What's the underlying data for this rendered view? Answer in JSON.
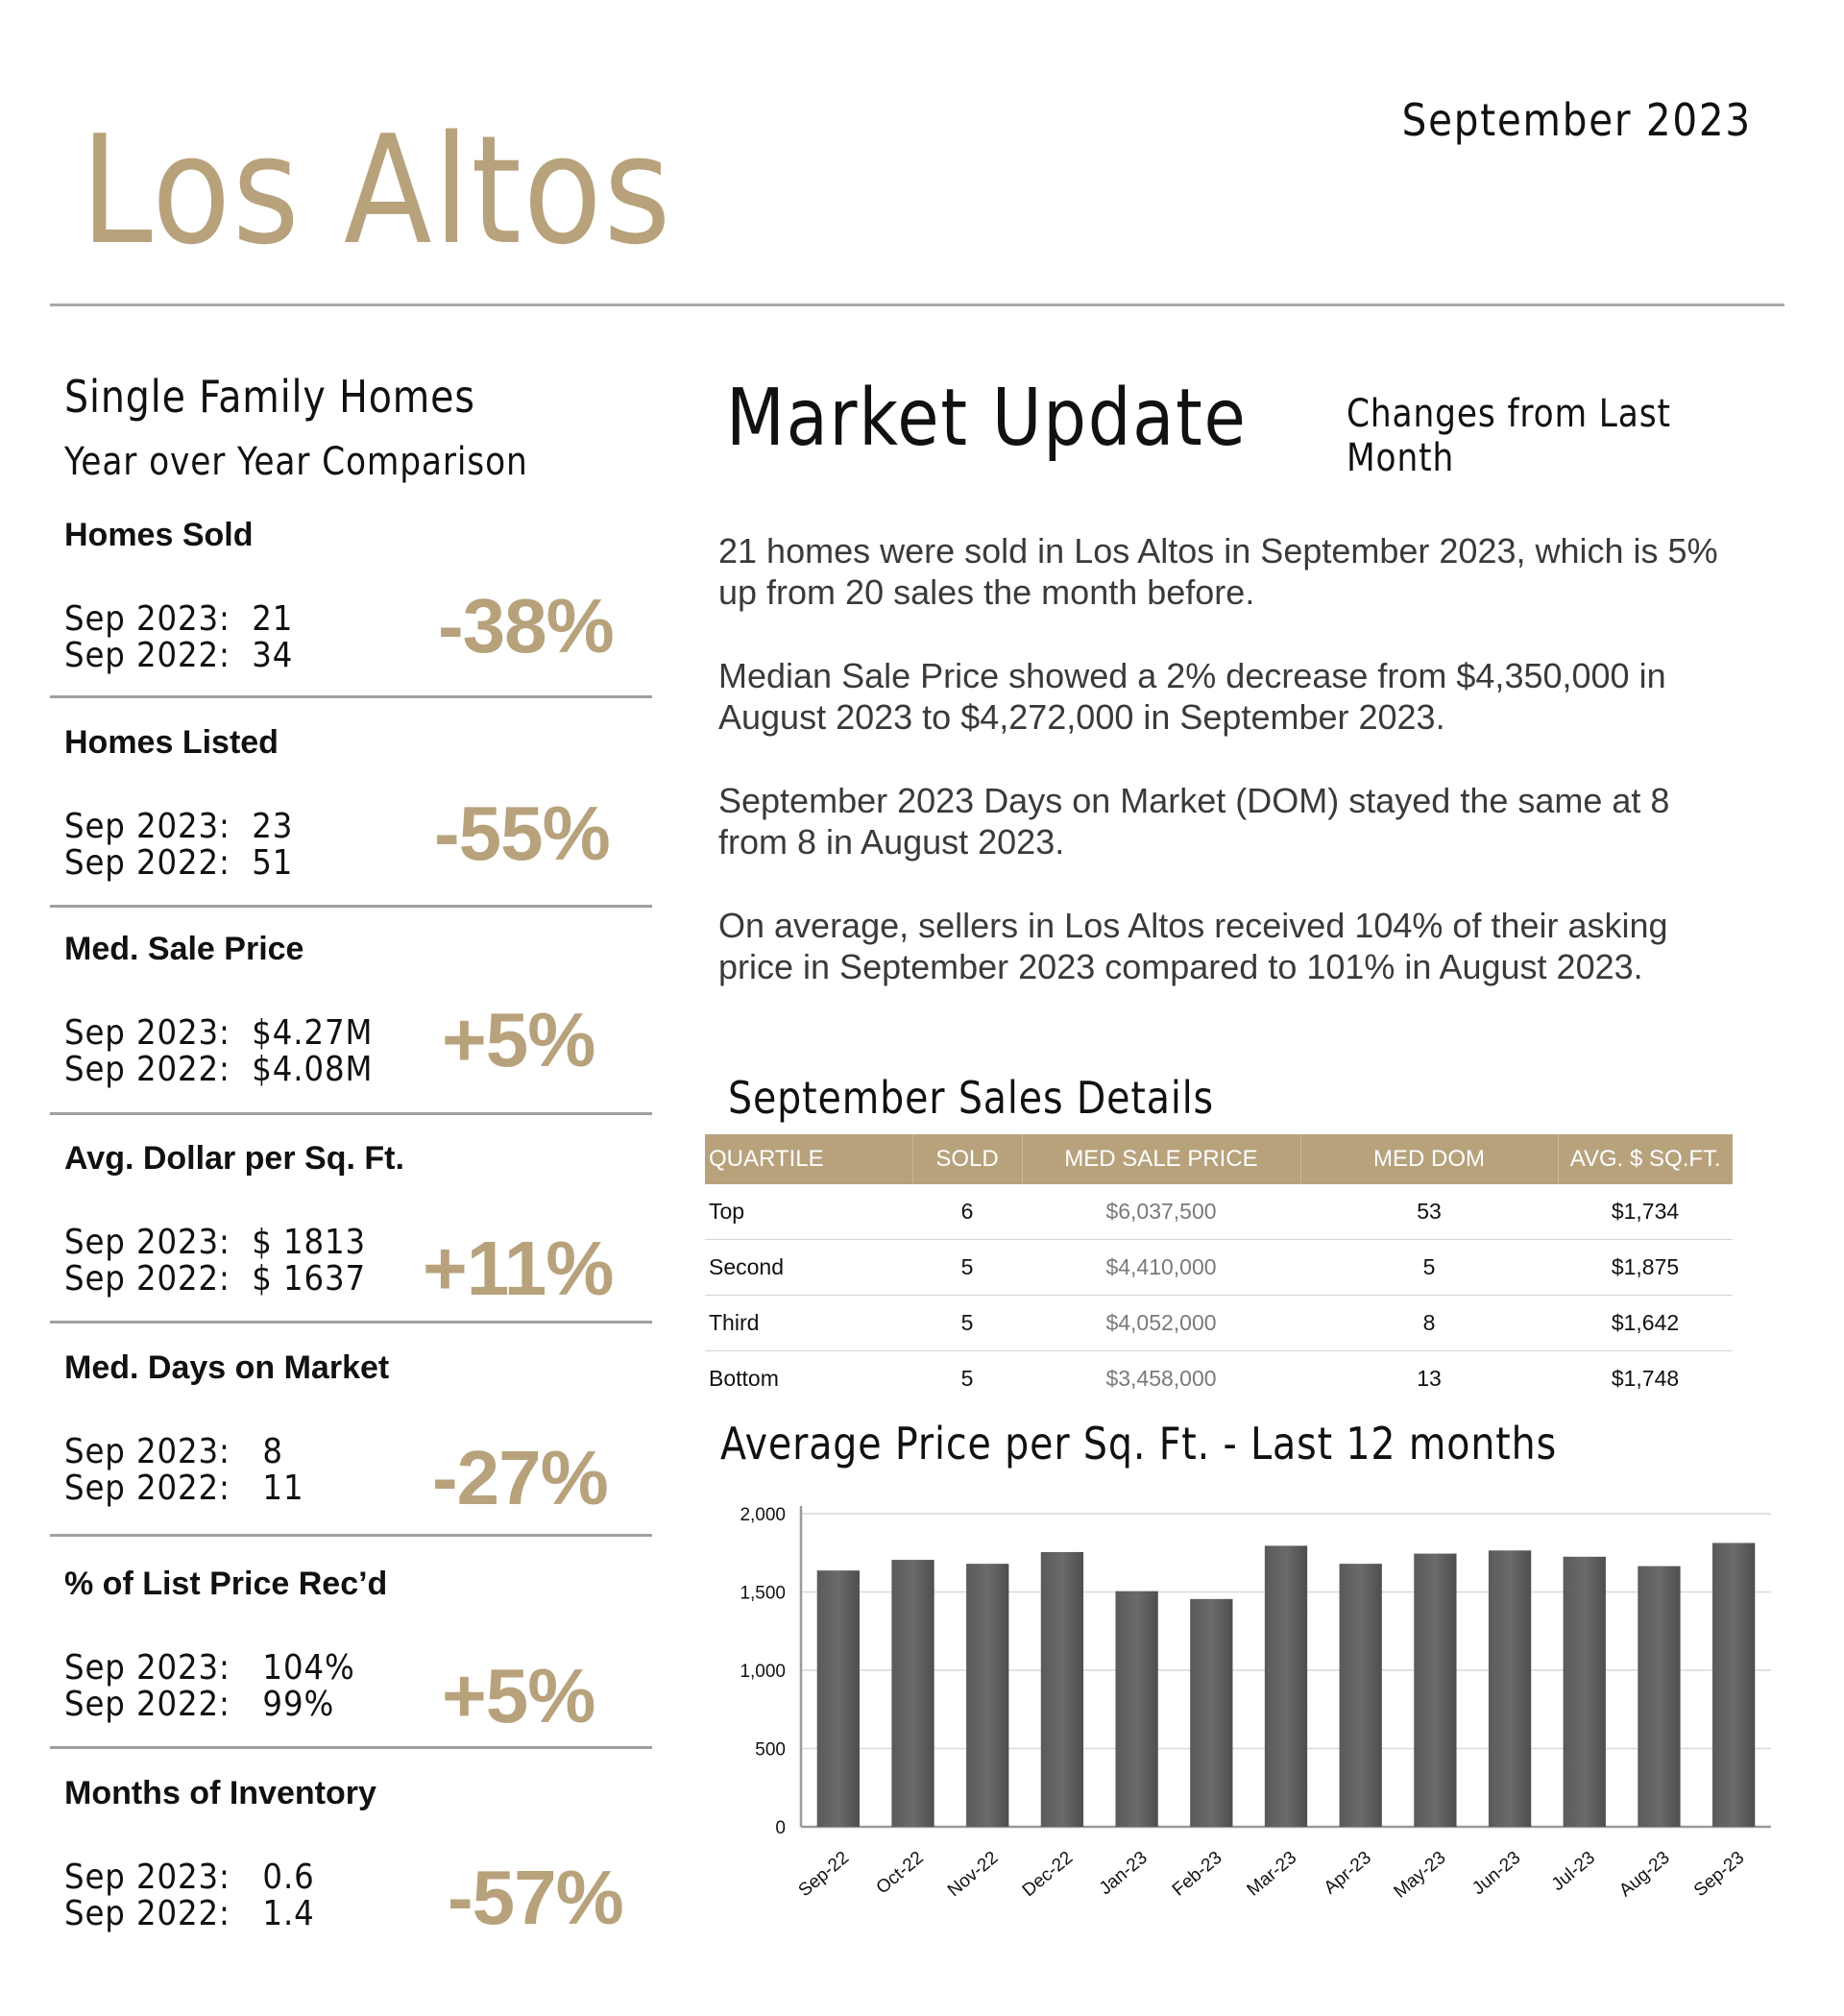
{
  "header": {
    "city": "Los Altos",
    "date": "September 2023"
  },
  "left": {
    "title": "Single Family Homes",
    "subtitle": "Year over Year Comparison",
    "metrics": [
      {
        "label": "Homes Sold",
        "line1": "Sep 2023:  21",
        "line2": "Sep 2022:  34",
        "change": "-38%"
      },
      {
        "label": "Homes Listed",
        "line1": "Sep 2023:  23",
        "line2": "Sep 2022:  51",
        "change": "-55%"
      },
      {
        "label": "Med. Sale Price",
        "line1": "Sep 2023:  $4.27M",
        "line2": "Sep 2022:  $4.08M",
        "change": "+5%"
      },
      {
        "label": "Avg. Dollar per Sq. Ft.",
        "line1": "Sep 2023:  $ 1813",
        "line2": "Sep 2022:  $ 1637",
        "change": "+11%"
      },
      {
        "label": "Med. Days on Market",
        "line1": "Sep 2023:   8",
        "line2": "Sep 2022:   11",
        "change": "-27%"
      },
      {
        "label": "% of List Price Rec’d",
        "line1": "Sep 2023:   104%",
        "line2": "Sep 2022:   99%",
        "change": "+5%"
      },
      {
        "label": "Months of Inventory",
        "line1": "Sep 2023:   0.6",
        "line2": "Sep 2022:   1.4",
        "change": "-57%"
      }
    ]
  },
  "market": {
    "title": "Market Update",
    "subtitle": "Changes from Last Month",
    "paragraphs": [
      "21 homes were sold in Los Altos in September 2023, which is 5% up from 20 sales the month before.",
      "Median Sale Price showed a 2% decrease from $4,350,000 in August 2023 to $4,272,000 in September 2023.",
      "September 2023 Days on Market (DOM) stayed the same at 8 from 8 in August 2023.",
      "On average, sellers in Los Altos received 104% of their asking price in September 2023 compared to 101% in August 2023."
    ]
  },
  "sales": {
    "title": "September Sales Details",
    "headers": [
      "QUARTILE",
      "SOLD",
      "MED SALE PRICE",
      "MED DOM",
      "AVG. $ SQ.FT."
    ],
    "rows": [
      [
        "Top",
        "6",
        "$6,037,500",
        "53",
        "$1,734"
      ],
      [
        "Second",
        "5",
        "$4,410,000",
        "5",
        "$1,875"
      ],
      [
        "Third",
        "5",
        "$4,052,000",
        "8",
        "$1,642"
      ],
      [
        "Bottom",
        "5",
        "$3,458,000",
        "13",
        "$1,748"
      ]
    ]
  },
  "chart_data": {
    "type": "bar",
    "title": "Average Price per Sq. Ft. - Last 12 months",
    "categories": [
      "Sep-22",
      "Oct-22",
      "Nov-22",
      "Dec-22",
      "Jan-23",
      "Feb-23",
      "Mar-23",
      "Apr-23",
      "May-23",
      "Jun-23",
      "Jul-23",
      "Aug-23",
      "Sep-23"
    ],
    "values": [
      1637,
      1705,
      1680,
      1755,
      1505,
      1455,
      1795,
      1680,
      1745,
      1765,
      1725,
      1665,
      1813
    ],
    "yticks": [
      "0",
      "500",
      "1,000",
      "1,500",
      "2,000"
    ],
    "ylim": [
      0,
      2000
    ],
    "grid": true,
    "bar_color": "#6b6b6b"
  },
  "colors": {
    "accent": "#b7a27c"
  }
}
